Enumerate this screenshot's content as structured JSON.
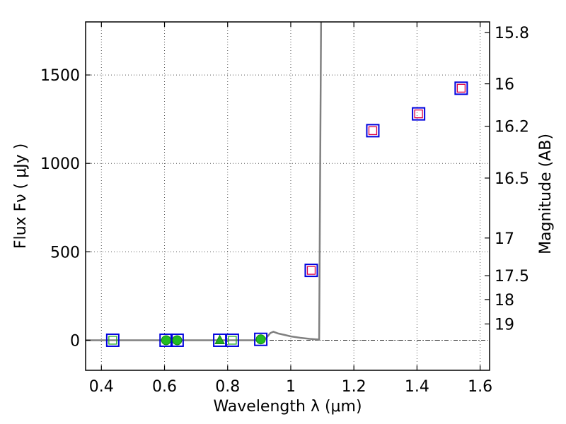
{
  "chart_data": {
    "type": "scatter",
    "xlabel": "Wavelength  λ (μm)",
    "ylabel_left": "Flux  Fν  ( μJy )",
    "ylabel_right": "Magnitude (AB)",
    "xlim": [
      0.35,
      1.63
    ],
    "ylim": [
      -170,
      1800
    ],
    "grid": true,
    "x_ticks": [
      0.4,
      0.6,
      0.8,
      1.0,
      1.2,
      1.4,
      1.6
    ],
    "x_tick_labels": [
      "0.4",
      "0.6",
      "0.8",
      "1",
      "1.2",
      "1.4",
      "1.6"
    ],
    "y_ticks": [
      0,
      500,
      1000,
      1500
    ],
    "y_tick_labels": [
      "0",
      "500",
      "1000",
      "1500"
    ],
    "right_ticks": [
      {
        "label": "15.8",
        "flux": 1740
      },
      {
        "label": "16",
        "flux": 1450
      },
      {
        "label": "16.2",
        "flux": 1210
      },
      {
        "label": "16.5",
        "flux": 917
      },
      {
        "label": "17",
        "flux": 578
      },
      {
        "label": "17.5",
        "flux": 365
      },
      {
        "label": "18",
        "flux": 230
      },
      {
        "label": "19",
        "flux": 92
      }
    ],
    "model_curve": {
      "name": "model",
      "color": "#808080",
      "points": [
        [
          0.35,
          0
        ],
        [
          0.9,
          0
        ],
        [
          0.92,
          8
        ],
        [
          0.935,
          40
        ],
        [
          0.945,
          48
        ],
        [
          0.96,
          38
        ],
        [
          0.98,
          30
        ],
        [
          1.0,
          22
        ],
        [
          1.03,
          14
        ],
        [
          1.06,
          8
        ],
        [
          1.09,
          4
        ],
        [
          1.096,
          1800
        ]
      ]
    },
    "baseline": {
      "y": 0,
      "color": "#333333",
      "style": "dashdot"
    },
    "series": [
      {
        "name": "observed-squares",
        "marker": "square",
        "color": "#0000dd",
        "points": [
          [
            0.436,
            0
          ],
          [
            0.605,
            0
          ],
          [
            0.64,
            0
          ],
          [
            0.775,
            0
          ],
          [
            0.815,
            0
          ],
          [
            0.905,
            5
          ],
          [
            1.065,
            395
          ],
          [
            1.26,
            1185
          ],
          [
            1.405,
            1280
          ],
          [
            1.54,
            1425
          ]
        ]
      },
      {
        "name": "model-squares",
        "marker": "square",
        "color": "#dd0044",
        "points": [
          [
            1.065,
            395
          ],
          [
            1.26,
            1185
          ],
          [
            1.405,
            1280
          ],
          [
            1.54,
            1425
          ]
        ]
      },
      {
        "name": "model-squares-optical",
        "marker": "square",
        "color": "#22aa22",
        "points": [
          [
            0.436,
            0
          ],
          [
            0.815,
            0
          ]
        ]
      },
      {
        "name": "detections",
        "marker": "circle",
        "color": "#22bb22",
        "points": [
          [
            0.605,
            0
          ],
          [
            0.64,
            0
          ],
          [
            0.905,
            5
          ]
        ]
      },
      {
        "name": "triangle-detection",
        "marker": "triangle",
        "color": "#22aa22",
        "points": [
          [
            0.775,
            0
          ]
        ]
      }
    ]
  }
}
